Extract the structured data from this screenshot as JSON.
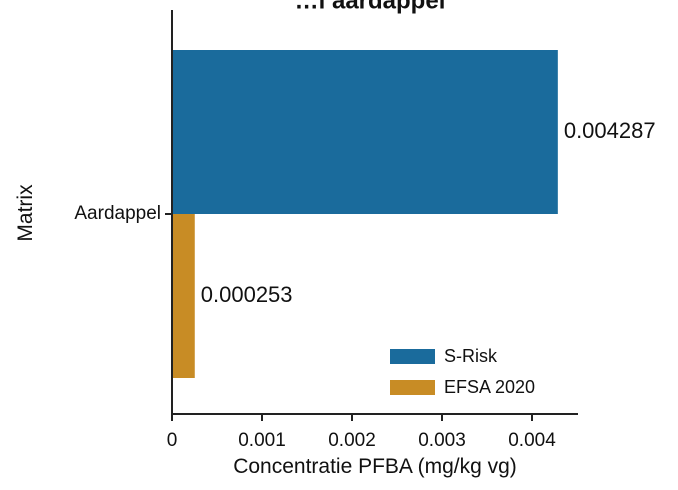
{
  "chart_data": {
    "type": "bar",
    "orientation": "horizontal",
    "title": "…l aardappel",
    "categories": [
      "Aardappel"
    ],
    "series": [
      {
        "name": "S-Risk",
        "values": [
          0.004287
        ],
        "color": "#1a6b9c"
      },
      {
        "name": "EFSA 2020",
        "values": [
          0.000253
        ],
        "color": "#c88c25"
      }
    ],
    "data_labels": [
      "0.004287",
      "0.000253"
    ],
    "xlabel": "Concentratie PFBA (mg/kg vg)",
    "ylabel": "Matrix",
    "xlim": [
      0,
      0.00455
    ],
    "xticks": [
      0,
      0.001,
      0.002,
      0.003,
      0.004
    ],
    "xtick_labels": [
      "0",
      "0.001",
      "0.002",
      "0.003",
      "0.004"
    ],
    "grid": false,
    "legend_position": "bottom-right"
  }
}
